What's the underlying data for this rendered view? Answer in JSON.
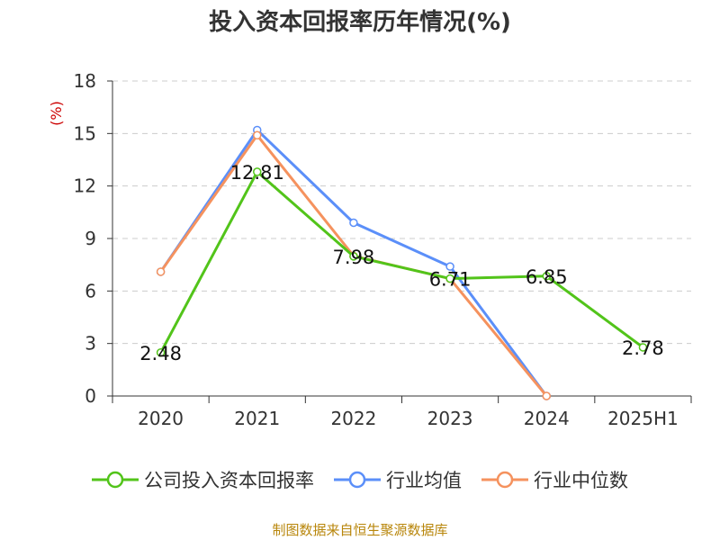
{
  "title": "投入资本回报率历年情况(%)",
  "source": "制图数据来自恒生聚源数据库",
  "chart_data": {
    "type": "line",
    "ylabel": "(%)",
    "categories": [
      "2020",
      "2021",
      "2022",
      "2023",
      "2024",
      "2025H1"
    ],
    "ylim": [
      0,
      18
    ],
    "yticks": [
      0,
      3,
      6,
      9,
      12,
      15,
      18
    ],
    "grid": true,
    "legend_position": "bottom",
    "series": [
      {
        "name": "公司投入资本回报率",
        "color": "#52c41a",
        "values": [
          2.48,
          12.81,
          7.98,
          6.71,
          6.85,
          2.78
        ],
        "labels": [
          "2.48",
          "12.81",
          "7.98",
          "6.71",
          "6.85",
          "2.78"
        ]
      },
      {
        "name": "行业均值",
        "color": "#5b8ff9",
        "values": [
          7.1,
          15.2,
          9.9,
          7.4,
          0.0,
          null
        ]
      },
      {
        "name": "行业中位数",
        "color": "#f5925e",
        "values": [
          7.1,
          14.9,
          8.0,
          6.7,
          0.0,
          null
        ]
      }
    ]
  }
}
